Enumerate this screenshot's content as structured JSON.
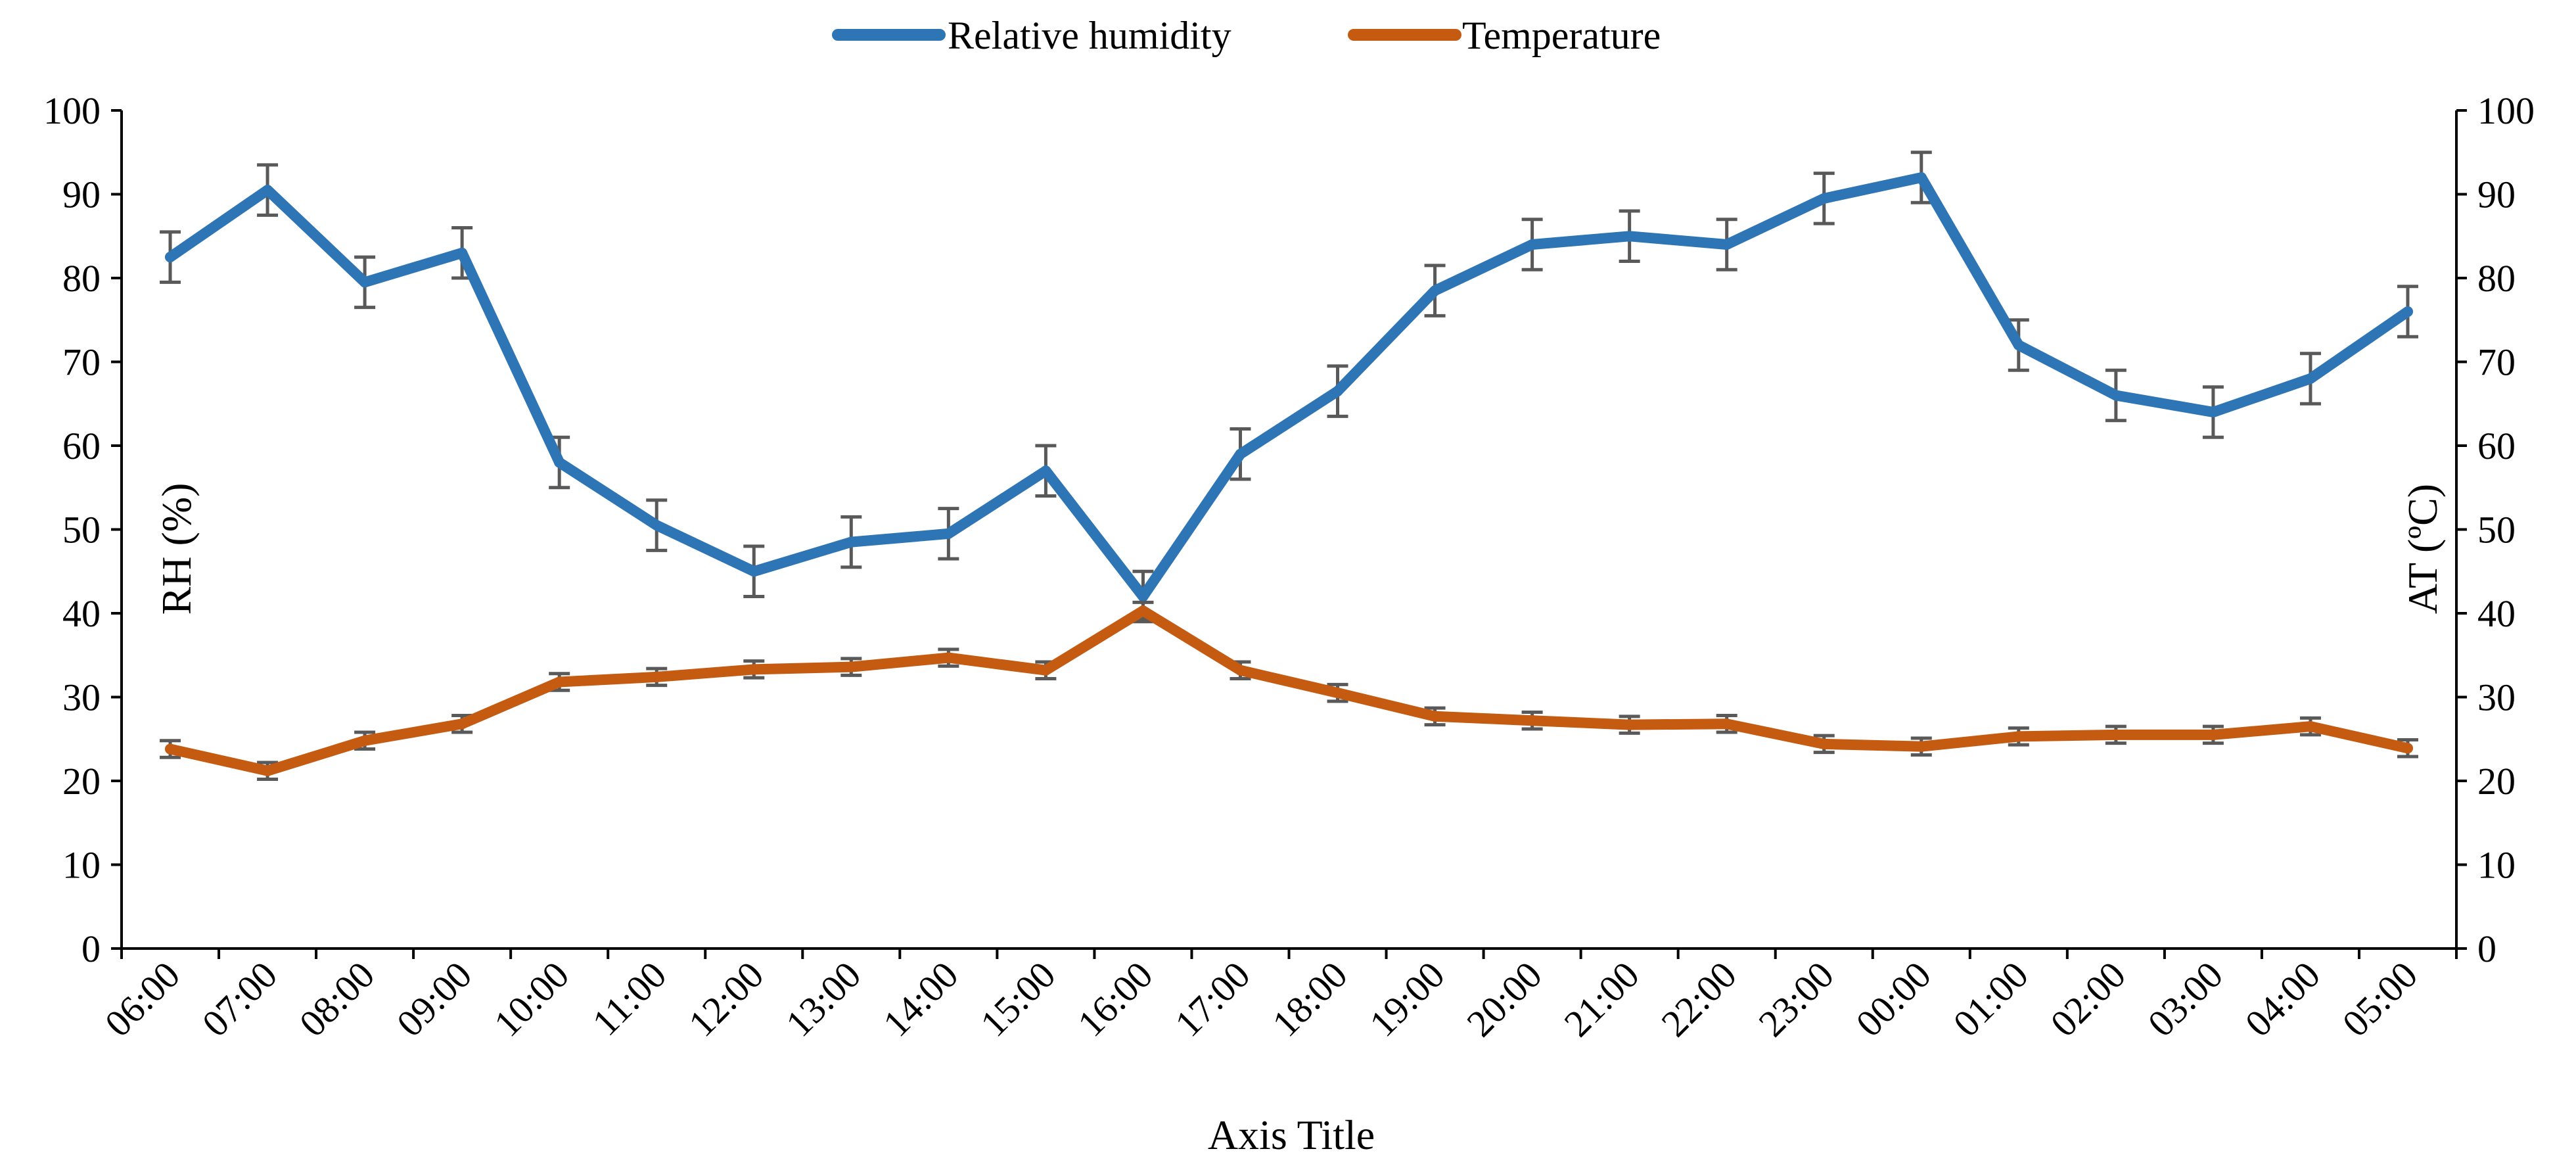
{
  "chart_data": {
    "type": "line",
    "title": "",
    "xlabel": "Axis Title",
    "ylabel_left": "RH (%)",
    "ylabel_right": "AT (ºC)",
    "ylim": [
      0,
      100
    ],
    "y_ticks": [
      "0",
      "10",
      "20",
      "30",
      "40",
      "50",
      "60",
      "70",
      "80",
      "90",
      "100"
    ],
    "grid": false,
    "legend_position": "top-center",
    "categories": [
      "06:00",
      "07:00",
      "08:00",
      "09:00",
      "10:00",
      "11:00",
      "12:00",
      "13:00",
      "14:00",
      "15:00",
      "16:00",
      "17:00",
      "18:00",
      "19:00",
      "20:00",
      "21:00",
      "22:00",
      "23:00",
      "00:00",
      "01:00",
      "02:00",
      "03:00",
      "04:00",
      "05:00"
    ],
    "series": [
      {
        "name": "Relative humidity",
        "color": "#2E75B6",
        "axis": "left",
        "values": [
          82.5,
          90.5,
          79.5,
          83,
          58,
          50.5,
          45,
          48.5,
          49.5,
          57,
          42,
          59,
          66.5,
          78.5,
          84,
          85,
          84,
          89.5,
          92,
          72,
          66,
          64,
          68,
          76
        ],
        "error": [
          3,
          3,
          3,
          3,
          3,
          3,
          3,
          3,
          3,
          3,
          3,
          3,
          3,
          3,
          3,
          3,
          3,
          3,
          3,
          3,
          3,
          3,
          3,
          3
        ]
      },
      {
        "name": "Temperature",
        "color": "#C55A11",
        "axis": "right",
        "values": [
          23.8,
          21.2,
          24.8,
          26.8,
          31.8,
          32.4,
          33.3,
          33.6,
          34.7,
          33.2,
          40.3,
          33.2,
          30.5,
          27.7,
          27.2,
          26.7,
          26.8,
          24.4,
          24.1,
          25.3,
          25.5,
          25.5,
          26.5,
          23.9
        ],
        "error": [
          1,
          1,
          1,
          1,
          1,
          1,
          1,
          1,
          1,
          1,
          1,
          1,
          1,
          1,
          1,
          1,
          1,
          1,
          1,
          1,
          1,
          1,
          1,
          1
        ]
      }
    ]
  }
}
